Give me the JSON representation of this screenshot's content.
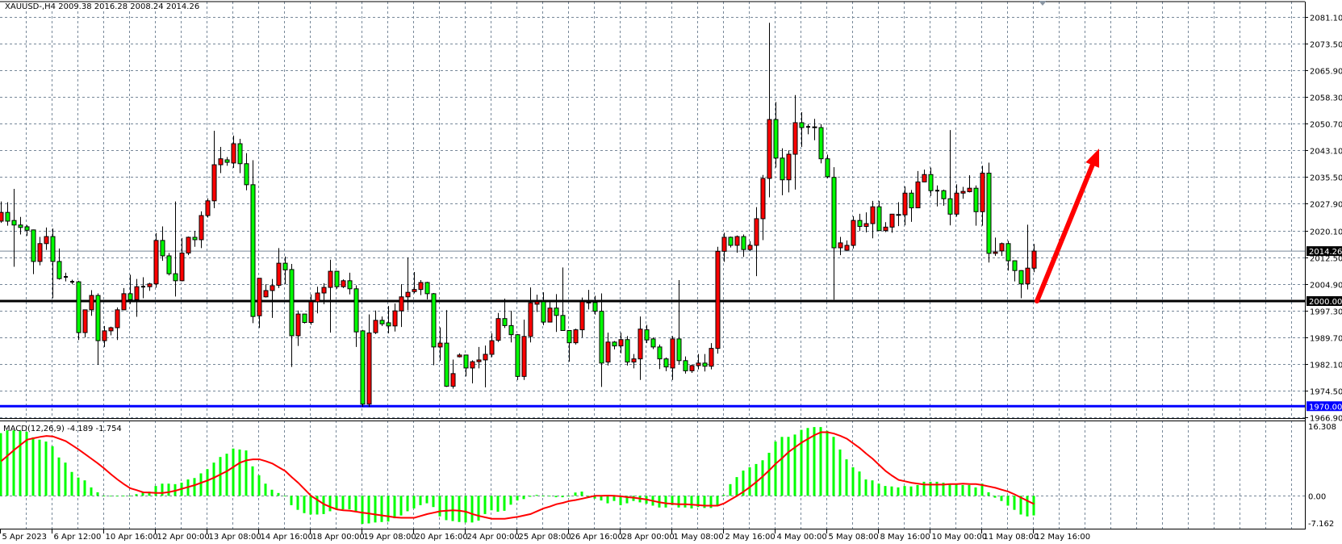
{
  "header": {
    "symbol_timeframe": "XAUUSD-,H4",
    "ohlc": "2009.38 2016.28 2008.24 2014.26"
  },
  "macd_header": {
    "label": "MACD(12,26,9)",
    "values": "-4.189 -1.754"
  },
  "colors": {
    "background": "#ffffff",
    "grid": "#778899",
    "bull_body": "#ff0000",
    "bear_body": "#00ff00",
    "wick": "#000000",
    "level_2000": "#000000",
    "level_1970": "#0000ff",
    "current_price_line": "#778899",
    "macd_histogram": "#00ff00",
    "macd_signal": "#ff0000",
    "arrow": "#ff0000"
  },
  "price_axis": {
    "labels": [
      "2081.10",
      "2073.50",
      "2065.90",
      "2058.30",
      "2050.70",
      "2043.10",
      "2035.50",
      "2027.90",
      "2020.10",
      "2012.50",
      "2004.90",
      "1997.30",
      "1989.70",
      "1982.10",
      "1974.50",
      "1966.90"
    ],
    "current_price": "2014.26",
    "level_2000": "2000.00",
    "level_1970": "1970.00"
  },
  "macd_axis": {
    "labels": [
      "16.308",
      "0.00",
      "-7.162"
    ]
  },
  "time_axis": {
    "labels": [
      "5 Apr 2023",
      "6 Apr 12:00",
      "10 Apr 16:00",
      "12 Apr 00:00",
      "13 Apr 08:00",
      "14 Apr 16:00",
      "18 Apr 00:00",
      "19 Apr 08:00",
      "20 Apr 16:00",
      "24 Apr 00:00",
      "25 Apr 08:00",
      "26 Apr 16:00",
      "28 Apr 00:00",
      "1 May 08:00",
      "2 May 16:00",
      "4 May 00:00",
      "5 May 08:00",
      "8 May 16:00",
      "10 May 00:00",
      "11 May 08:00",
      "12 May 16:00"
    ]
  },
  "annotations": {
    "horizontal_levels": [
      2000.0,
      1970.0
    ],
    "arrow": {
      "direction": "up",
      "from_price": 2000.0,
      "to_price": 2043.5
    }
  },
  "chart_data": {
    "type": "candlestick",
    "symbol": "XAUUSD-",
    "timeframe": "H4",
    "ylim": [
      1966.4,
      2085.9
    ],
    "grid": true,
    "ohlc_fields": [
      "open",
      "high",
      "low",
      "close"
    ],
    "candles": [
      [
        2022.8,
        2028.4,
        2022.3,
        2025.3
      ],
      [
        2025.3,
        2028.2,
        2021.5,
        2022.8
      ],
      [
        2023.0,
        2032.0,
        2009.8,
        2021.7
      ],
      [
        2021.7,
        2024.0,
        2019.0,
        2021.0
      ],
      [
        2021.2,
        2021.7,
        2018.6,
        2020.2
      ],
      [
        2020.3,
        2020.4,
        2007.7,
        2011.3
      ],
      [
        2011.3,
        2018.3,
        2010.2,
        2016.4
      ],
      [
        2016.4,
        2021.0,
        2014.6,
        2018.4
      ],
      [
        2018.4,
        2020.7,
        2000.8,
        2011.3
      ],
      [
        2011.3,
        2015.0,
        2006.1,
        2006.4
      ],
      [
        2006.9,
        2008.1,
        2005.6,
        2006.9
      ],
      [
        2005.5,
        2006.1,
        2004.8,
        2005.5
      ],
      [
        2005.5,
        2005.8,
        1988.9,
        1991.0
      ],
      [
        1991.0,
        1997.5,
        1989.6,
        1997.5
      ],
      [
        1997.5,
        2003.1,
        1995.8,
        2001.6
      ],
      [
        2001.6,
        2002.2,
        1981.8,
        1988.7
      ],
      [
        1988.7,
        1992.9,
        1986.9,
        1991.5
      ],
      [
        1991.5,
        1992.7,
        1990.2,
        1992.4
      ],
      [
        1992.4,
        1998.2,
        1988.9,
        1997.5
      ],
      [
        1997.5,
        2003.7,
        1997.5,
        2002.1
      ],
      [
        2002.1,
        2007.5,
        1999.2,
        2000.4
      ],
      [
        2000.4,
        2006.3,
        1995.5,
        2004.1
      ],
      [
        2004.1,
        2006.8,
        2000.8,
        2004.1
      ],
      [
        2004.1,
        2005.2,
        2002.9,
        2004.9
      ],
      [
        2004.9,
        2019.4,
        2003.8,
        2017.3
      ],
      [
        2017.3,
        2021.3,
        2011.5,
        2012.9
      ],
      [
        2012.9,
        2013.7,
        2007.3,
        2007.8
      ],
      [
        2007.8,
        2028.4,
        2001.3,
        2005.8
      ],
      [
        2005.8,
        2018.0,
        2005.6,
        2013.7
      ],
      [
        2013.7,
        2018.4,
        2013.1,
        2018.2
      ],
      [
        2018.2,
        2020.0,
        2015.5,
        2017.5
      ],
      [
        2017.5,
        2025.6,
        2015.1,
        2024.4
      ],
      [
        2024.4,
        2029.3,
        2023.8,
        2028.6
      ],
      [
        2028.6,
        2048.6,
        2026.5,
        2038.9
      ],
      [
        2038.9,
        2044.0,
        2036.5,
        2040.6
      ],
      [
        2040.3,
        2041.1,
        2038.6,
        2039.6
      ],
      [
        2039.4,
        2047.2,
        2038.0,
        2044.9
      ],
      [
        2044.9,
        2046.3,
        2036.5,
        2039.2
      ],
      [
        2039.2,
        2042.2,
        2031.6,
        2033.2
      ],
      [
        2033.2,
        2040.2,
        1993.7,
        1995.6
      ],
      [
        1995.8,
        2006.5,
        1992.3,
        2006.5
      ],
      [
        2001.2,
        2004.8,
        2001.0,
        2003.0
      ],
      [
        2003.0,
        2006.3,
        1995.2,
        2004.4
      ],
      [
        2004.5,
        2015.1,
        2003.7,
        2010.8
      ],
      [
        2010.8,
        2012.7,
        2004.8,
        2008.9
      ],
      [
        2009.0,
        2010.6,
        1981.2,
        1990.1
      ],
      [
        1990.1,
        1997.3,
        1987.2,
        1996.3
      ],
      [
        1996.3,
        1996.3,
        1993.6,
        1993.9
      ],
      [
        1993.9,
        2001.9,
        1993.2,
        1999.8
      ],
      [
        1999.8,
        2004.1,
        1996.5,
        2002.3
      ],
      [
        2002.3,
        2005.1,
        1999.1,
        2003.9
      ],
      [
        2003.9,
        2011.8,
        1991.0,
        2008.5
      ],
      [
        2008.5,
        2008.5,
        2003.5,
        2004.1
      ],
      [
        2004.1,
        2006.2,
        2003.7,
        2005.8
      ],
      [
        2005.8,
        2008.1,
        2001.9,
        2003.5
      ],
      [
        2003.5,
        2004.5,
        1986.9,
        1991.2
      ],
      [
        1991.5,
        1991.8,
        1969.8,
        1970.6
      ],
      [
        1970.6,
        1996.2,
        1969.8,
        1990.9
      ],
      [
        1991.0,
        1997.3,
        1990.6,
        1994.5
      ],
      [
        1994.5,
        1995.6,
        1992.9,
        1993.5
      ],
      [
        1993.8,
        1998.6,
        1990.8,
        1992.9
      ],
      [
        1992.9,
        1999.3,
        1991.3,
        1997.2
      ],
      [
        1997.2,
        2004.8,
        1992.6,
        2001.2
      ],
      [
        2001.2,
        2012.4,
        1997.4,
        2002.5
      ],
      [
        2002.7,
        2008.3,
        2002.2,
        2003.3
      ],
      [
        2003.3,
        2006.0,
        2001.7,
        2005.3
      ],
      [
        2005.3,
        2005.5,
        2000.5,
        2002.1
      ],
      [
        2002.1,
        2002.3,
        1981.7,
        1986.9
      ],
      [
        1986.9,
        1992.5,
        1983.0,
        1988.0
      ],
      [
        1988.0,
        1997.4,
        1975.5,
        1975.7
      ],
      [
        1975.7,
        1983.3,
        1975.0,
        1979.3
      ],
      [
        1984.1,
        1985.1,
        1983.9,
        1984.6
      ],
      [
        1984.6,
        1984.6,
        1978.5,
        1980.9
      ],
      [
        1980.9,
        1983.1,
        1976.5,
        1982.7
      ],
      [
        1982.7,
        1986.9,
        1980.8,
        1983.2
      ],
      [
        1983.2,
        1987.3,
        1975.4,
        1984.8
      ],
      [
        1984.8,
        1990.8,
        1984.0,
        1988.7
      ],
      [
        1988.8,
        1996.6,
        1988.3,
        1995.0
      ],
      [
        1995.0,
        2000.7,
        1992.3,
        1993.0
      ],
      [
        1993.0,
        1997.2,
        1988.2,
        1990.4
      ],
      [
        1990.4,
        1990.6,
        1977.5,
        1978.5
      ],
      [
        1978.5,
        1994.7,
        1977.5,
        1989.9
      ],
      [
        1989.9,
        2003.9,
        1988.2,
        1999.5
      ],
      [
        1999.1,
        2001.8,
        1996.9,
        1999.8
      ],
      [
        1999.8,
        2002.5,
        1993.1,
        1994.0
      ],
      [
        1994.0,
        2000.0,
        1994.0,
        1998.0
      ],
      [
        1998.0,
        2002.0,
        1991.2,
        1995.9
      ],
      [
        1995.9,
        2009.6,
        1991.6,
        1991.6
      ],
      [
        1991.6,
        1991.6,
        1982.7,
        1988.1
      ],
      [
        1988.1,
        1992.1,
        1987.6,
        1991.8
      ],
      [
        1991.8,
        2001.0,
        1989.6,
        1999.8
      ],
      [
        1999.7,
        2003.2,
        1997.6,
        1999.5
      ],
      [
        1999.6,
        2001.5,
        1996.1,
        1997.1
      ],
      [
        1997.1,
        2002.2,
        1975.5,
        1982.3
      ],
      [
        1982.6,
        1991.0,
        1981.6,
        1988.3
      ],
      [
        1988.3,
        1988.6,
        1986.2,
        1987.2
      ],
      [
        1987.2,
        1991.0,
        1985.1,
        1989.0
      ],
      [
        1989.0,
        1990.0,
        1981.6,
        1982.6
      ],
      [
        1982.6,
        1984.9,
        1980.8,
        1983.5
      ],
      [
        1983.5,
        1995.6,
        1977.5,
        1992.0
      ],
      [
        1991.8,
        1993.2,
        1988.0,
        1988.9
      ],
      [
        1989.2,
        1989.6,
        1986.3,
        1986.9
      ],
      [
        1986.9,
        1987.6,
        1980.6,
        1983.5
      ],
      [
        1983.5,
        1983.9,
        1980.0,
        1981.2
      ],
      [
        1980.9,
        1990.0,
        1977.5,
        1989.2
      ],
      [
        1989.2,
        2006.0,
        1982.0,
        1983.0
      ],
      [
        1983.0,
        1984.2,
        1979.3,
        1980.1
      ],
      [
        1980.1,
        1981.9,
        1979.5,
        1981.6
      ],
      [
        1981.6,
        1984.9,
        1980.5,
        1982.3
      ],
      [
        1982.3,
        1984.9,
        1979.9,
        1981.4
      ],
      [
        1981.4,
        1988.0,
        1980.5,
        1986.5
      ],
      [
        1986.5,
        2015.5,
        1985.0,
        2014.2
      ],
      [
        2014.2,
        2019.5,
        2011.2,
        2018.2
      ],
      [
        2018.2,
        2018.4,
        2015.3,
        2015.9
      ],
      [
        2015.9,
        2018.7,
        2013.8,
        2018.4
      ],
      [
        2018.4,
        2019.0,
        2012.6,
        2014.7
      ],
      [
        2014.7,
        2017.1,
        2014.3,
        2015.9
      ],
      [
        2015.9,
        2026.8,
        2007.1,
        2023.5
      ],
      [
        2023.5,
        2036.0,
        2017.4,
        2035.0
      ],
      [
        2035.0,
        2079.4,
        2029.6,
        2051.8
      ],
      [
        2051.8,
        2056.8,
        2038.1,
        2040.8
      ],
      [
        2040.8,
        2043.6,
        2030.2,
        2034.6
      ],
      [
        2034.6,
        2043.0,
        2031.0,
        2041.9
      ],
      [
        2041.9,
        2058.8,
        2031.8,
        2050.9
      ],
      [
        2050.9,
        2053.9,
        2044.0,
        2049.5
      ],
      [
        2049.7,
        2050.5,
        2047.6,
        2049.7
      ],
      [
        2049.7,
        2052.0,
        2045.9,
        2049.6
      ],
      [
        2049.5,
        2050.5,
        2039.3,
        2040.6
      ],
      [
        2040.6,
        2041.8,
        2035.0,
        2035.5
      ],
      [
        2035.3,
        2038.2,
        2000.4,
        2015.2
      ],
      [
        2015.2,
        2018.3,
        2013.1,
        2016.6
      ],
      [
        2014.5,
        2017.3,
        2014.3,
        2015.9
      ],
      [
        2015.9,
        2024.2,
        2015.0,
        2023.0
      ],
      [
        2023.0,
        2024.9,
        2020.0,
        2021.3
      ],
      [
        2021.3,
        2025.3,
        2019.6,
        2022.1
      ],
      [
        2022.1,
        2028.6,
        2017.9,
        2026.9
      ],
      [
        2026.9,
        2028.6,
        2020.1,
        2020.1
      ],
      [
        2020.1,
        2022.5,
        2019.7,
        2021.1
      ],
      [
        2021.1,
        2024.8,
        2019.5,
        2024.8
      ],
      [
        2024.6,
        2028.2,
        2021.4,
        2024.7
      ],
      [
        2024.6,
        2032.7,
        2021.6,
        2030.8
      ],
      [
        2030.8,
        2031.7,
        2022.6,
        2026.6
      ],
      [
        2026.6,
        2037.1,
        2026.6,
        2034.0
      ],
      [
        2034.0,
        2037.5,
        2033.9,
        2036.1
      ],
      [
        2036.1,
        2038.1,
        2030.0,
        2031.5
      ],
      [
        2031.5,
        2033.0,
        2027.0,
        2031.5
      ],
      [
        2031.5,
        2031.8,
        2027.2,
        2029.2
      ],
      [
        2029.2,
        2048.8,
        2021.6,
        2024.8
      ],
      [
        2024.8,
        2033.3,
        2024.1,
        2030.8
      ],
      [
        2030.8,
        2032.6,
        2029.2,
        2031.3
      ],
      [
        2031.2,
        2035.9,
        2031.0,
        2032.2
      ],
      [
        2032.2,
        2033.0,
        2021.5,
        2025.5
      ],
      [
        2025.5,
        2038.6,
        2021.5,
        2036.5
      ],
      [
        2036.5,
        2039.5,
        2011.0,
        2013.6
      ],
      [
        2013.6,
        2018.1,
        2012.9,
        2014.0
      ],
      [
        2014.3,
        2016.7,
        2012.9,
        2016.4
      ],
      [
        2016.4,
        2017.2,
        2008.7,
        2011.5
      ],
      [
        2011.5,
        2011.6,
        2005.6,
        2008.7
      ],
      [
        2008.7,
        2008.8,
        2000.8,
        2004.9
      ],
      [
        2004.9,
        2021.8,
        2003.3,
        2009.4
      ],
      [
        2009.38,
        2016.28,
        2008.24,
        2014.26
      ]
    ],
    "macd": {
      "title": "MACD(12,26,9)",
      "ylim": [
        -7.162,
        16.308
      ],
      "histogram": [
        13.4,
        14.0,
        14.0,
        13.9,
        13.7,
        12.5,
        12.0,
        11.6,
        10.6,
        8.2,
        7.1,
        5.1,
        3.9,
        3.3,
        1.8,
        0.75,
        0.05,
        -0.1,
        0,
        0.05,
        0.05,
        0.35,
        0.9,
        0.9,
        2.1,
        2.6,
        2.6,
        2.5,
        2.8,
        3.5,
        3.8,
        4.8,
        5.7,
        7.1,
        8.3,
        9.0,
        10.1,
        9.9,
        9.7,
        6.3,
        4.4,
        2.6,
        1.3,
        0.6,
        0,
        -2.0,
        -3.0,
        -3.7,
        -4.0,
        -4.0,
        -3.9,
        -3.3,
        -3.0,
        -2.9,
        -2.9,
        -3.3,
        -6.0,
        -5.9,
        -5.7,
        -5.6,
        -5.5,
        -4.8,
        -4.2,
        -3.3,
        -2.7,
        -2.0,
        -1.6,
        -2.4,
        -4.4,
        -5.2,
        -5.4,
        -5.6,
        -5.7,
        -5.7,
        -5.3,
        -3.9,
        -3.1,
        -3.4,
        -3.2,
        -1.9,
        -1.0,
        -0.7,
        -0.2,
        0.2,
        0.05,
        0,
        -0.3,
        -0.3,
        0,
        0.7,
        0.9,
        -0.2,
        -0.6,
        -1.0,
        -1.6,
        -1.1,
        -2.0,
        -1.6,
        -1.1,
        -1.4,
        -1.7,
        -2.1,
        -2.5,
        -2.5,
        -2.0,
        -2.5,
        -2.5,
        -2.7,
        -2.4,
        -2.6,
        -2.6,
        -2.0,
        0.2,
        2.5,
        4.0,
        5.4,
        6.1,
        6.8,
        7.6,
        9.2,
        11.6,
        12.6,
        12.6,
        13.1,
        14.1,
        14.5,
        14.7,
        14.7,
        13.9,
        12.6,
        9.9,
        7.8,
        6.1,
        5.2,
        3.5,
        3.3,
        2.6,
        2.1,
        2.0,
        1.8,
        2.1,
        2.0,
        2.3,
        3.0,
        3.0,
        3.0,
        2.8,
        2.4,
        2.4,
        2.3,
        2.3,
        1.8,
        2.6,
        0.75,
        -0.4,
        -1.1,
        -2.1,
        -3.0,
        -4.0,
        -4.4,
        -4.189
      ],
      "signal": [
        7.4,
        8.6,
        9.8,
        10.9,
        12.0,
        12.3,
        12.6,
        12.8,
        12.7,
        12.2,
        11.7,
        10.8,
        9.9,
        8.9,
        7.9,
        6.9,
        5.8,
        4.6,
        3.5,
        2.5,
        1.6,
        1.2,
        0.75,
        0.7,
        0.6,
        0.6,
        0.8,
        1.1,
        1.5,
        1.9,
        2.3,
        2.8,
        3.3,
        3.9,
        4.6,
        5.3,
        6.2,
        7.1,
        7.6,
        7.8,
        7.8,
        7.4,
        6.9,
        6.1,
        5.3,
        4.0,
        2.8,
        1.4,
        0,
        -0.9,
        -1.8,
        -2.4,
        -2.9,
        -3.1,
        -3.2,
        -3.4,
        -3.6,
        -3.8,
        -4.0,
        -4.2,
        -4.4,
        -4.6,
        -4.7,
        -4.7,
        -4.7,
        -4.3,
        -3.9,
        -3.6,
        -3.3,
        -3.2,
        -3.1,
        -3.2,
        -3.4,
        -3.9,
        -4.3,
        -4.6,
        -4.9,
        -4.9,
        -4.9,
        -4.7,
        -4.5,
        -4.2,
        -3.9,
        -3.3,
        -2.7,
        -2.3,
        -1.8,
        -1.5,
        -1.1,
        -0.9,
        -0.6,
        -0.3,
        0,
        0,
        0.05,
        0,
        -0.1,
        -0.3,
        -0.4,
        -0.6,
        -0.8,
        -1.1,
        -1.4,
        -1.6,
        -1.7,
        -1.8,
        -1.8,
        -1.9,
        -2.0,
        -2.1,
        -2.1,
        -2.1,
        -1.6,
        -0.8,
        0,
        0.9,
        1.9,
        3.0,
        4.2,
        5.5,
        6.9,
        8.1,
        9.4,
        10.4,
        11.4,
        12.2,
        13.0,
        13.6,
        13.6,
        13.3,
        12.8,
        12.2,
        11.2,
        10.2,
        9.0,
        7.9,
        6.6,
        5.3,
        4.3,
        3.4,
        3.1,
        2.8,
        2.6,
        2.4,
        2.4,
        2.4,
        2.4,
        2.5,
        2.5,
        2.6,
        2.5,
        2.5,
        2.3,
        2.0,
        1.7,
        1.3,
        0.9,
        0.3,
        -0.4,
        -1.1,
        -1.754
      ]
    }
  }
}
